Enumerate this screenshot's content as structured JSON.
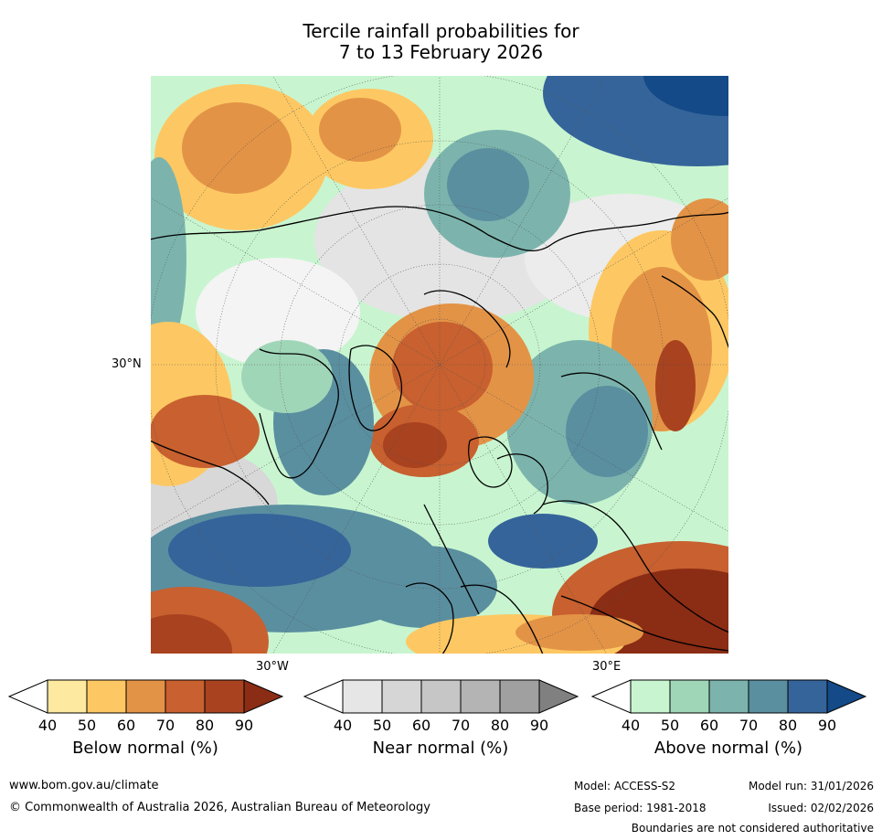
{
  "title_line1": "Tercile rainfall probabilities for",
  "title_line2": "7 to 13 February 2026",
  "map": {
    "lat_label": "30°N",
    "lon_label_west": "30°W",
    "lon_label_east": "30°E"
  },
  "colorbars": [
    {
      "label": "Below normal (%)",
      "ticks": [
        "40",
        "50",
        "60",
        "70",
        "80",
        "90"
      ],
      "colors": [
        "#ffffff",
        "#fee9a0",
        "#fdc863",
        "#e39346",
        "#c8602f",
        "#a8421f",
        "#8b2c14"
      ]
    },
    {
      "label": "Near normal (%)",
      "ticks": [
        "40",
        "50",
        "60",
        "70",
        "80",
        "90"
      ],
      "colors": [
        "#ffffff",
        "#e6e6e6",
        "#d6d6d6",
        "#c6c6c6",
        "#b4b4b4",
        "#a0a0a0",
        "#808080"
      ]
    },
    {
      "label": "Above normal (%)",
      "ticks": [
        "40",
        "50",
        "60",
        "70",
        "80",
        "90"
      ],
      "colors": [
        "#ffffff",
        "#c8f5d0",
        "#a0d6b8",
        "#7cb4ad",
        "#5a8fa0",
        "#35649a",
        "#134a87"
      ]
    }
  ],
  "footer": {
    "url": "www.bom.gov.au/climate",
    "copyright": "© Commonwealth of Australia 2026, Australian Bureau of Meteorology",
    "model": "Model: ACCESS-S2",
    "base_period": "Base period: 1981-2018",
    "model_run": "Model run: 31/01/2026",
    "issued": "Issued: 02/02/2026",
    "disclaimer": "Boundaries are not considered authoritative"
  }
}
